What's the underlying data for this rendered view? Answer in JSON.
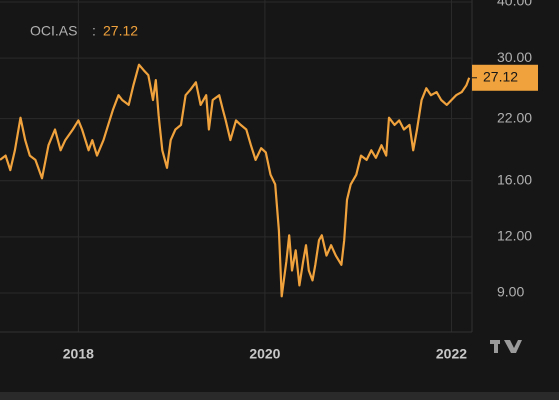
{
  "chart_data": {
    "type": "line",
    "title": "OCI.AS",
    "title_separator": ":",
    "x": [
      2017.16,
      2017.22,
      2017.27,
      2017.32,
      2017.38,
      2017.43,
      2017.48,
      2017.54,
      2017.61,
      2017.68,
      2017.75,
      2017.81,
      2017.86,
      2017.94,
      2018.0,
      2018.04,
      2018.11,
      2018.15,
      2018.2,
      2018.27,
      2018.32,
      2018.37,
      2018.43,
      2018.47,
      2018.54,
      2018.59,
      2018.65,
      2018.7,
      2018.75,
      2018.8,
      2018.83,
      2018.86,
      2018.9,
      2018.95,
      2018.99,
      2019.04,
      2019.1,
      2019.15,
      2019.2,
      2019.26,
      2019.31,
      2019.37,
      2019.4,
      2019.44,
      2019.51,
      2019.55,
      2019.58,
      2019.63,
      2019.69,
      2019.74,
      2019.8,
      2019.85,
      2019.9,
      2019.96,
      2020.01,
      2020.06,
      2020.11,
      2020.15,
      2020.18,
      2020.23,
      2020.26,
      2020.29,
      2020.33,
      2020.37,
      2020.41,
      2020.44,
      2020.47,
      2020.51,
      2020.54,
      2020.58,
      2020.61,
      2020.66,
      2020.71,
      2020.76,
      2020.82,
      2020.85,
      2020.88,
      2020.92,
      2020.98,
      2021.03,
      2021.09,
      2021.14,
      2021.19,
      2021.25,
      2021.3,
      2021.33,
      2021.39,
      2021.44,
      2021.49,
      2021.55,
      2021.59,
      2021.63,
      2021.68,
      2021.73,
      2021.78,
      2021.84,
      2021.89,
      2021.95,
      2022.0,
      2022.05,
      2022.11,
      2022.16,
      2022.19
    ],
    "series": [
      {
        "name": "OCI.AS",
        "color": "#f0a23c",
        "values": [
          17.8,
          18.2,
          16.9,
          18.7,
          22.1,
          19.7,
          18.2,
          17.8,
          16.2,
          19.2,
          20.8,
          18.7,
          19.7,
          20.8,
          21.8,
          20.8,
          18.7,
          19.7,
          18.2,
          19.7,
          21.3,
          23.0,
          24.8,
          24.2,
          23.6,
          26.1,
          29.0,
          28.2,
          27.5,
          24.2,
          26.8,
          22.4,
          18.7,
          17.1,
          19.7,
          20.8,
          21.3,
          24.8,
          25.5,
          26.5,
          23.6,
          24.8,
          20.8,
          24.2,
          24.8,
          23.0,
          21.8,
          19.7,
          21.8,
          21.3,
          20.8,
          19.2,
          17.8,
          18.9,
          18.5,
          16.5,
          15.7,
          12.4,
          8.85,
          10.6,
          12.1,
          10.1,
          11.2,
          9.36,
          10.6,
          11.5,
          10.1,
          9.6,
          10.4,
          11.8,
          12.1,
          10.9,
          11.5,
          10.9,
          10.4,
          11.8,
          14.5,
          15.7,
          16.5,
          18.2,
          17.8,
          18.7,
          18.0,
          19.2,
          18.2,
          22.1,
          21.3,
          21.8,
          20.8,
          21.3,
          18.7,
          20.8,
          24.2,
          25.7,
          24.8,
          25.2,
          24.2,
          23.6,
          24.2,
          24.8,
          25.2,
          26.1,
          27.12
        ]
      }
    ],
    "xlim": [
      2017.16,
      2022.22
    ],
    "xticks": [
      2018,
      2020,
      2022
    ],
    "ylim": [
      7.37,
      40.4
    ],
    "log_scale": true,
    "grid": true,
    "yticks": [
      {
        "value": 9,
        "label": "9.00"
      },
      {
        "value": 12,
        "label": "12.00"
      },
      {
        "value": 16,
        "label": "16.00"
      },
      {
        "value": 22,
        "label": "22.00"
      },
      {
        "value": 30,
        "label": "30.00"
      },
      {
        "value": 40,
        "label": "40.00"
      }
    ]
  }
}
